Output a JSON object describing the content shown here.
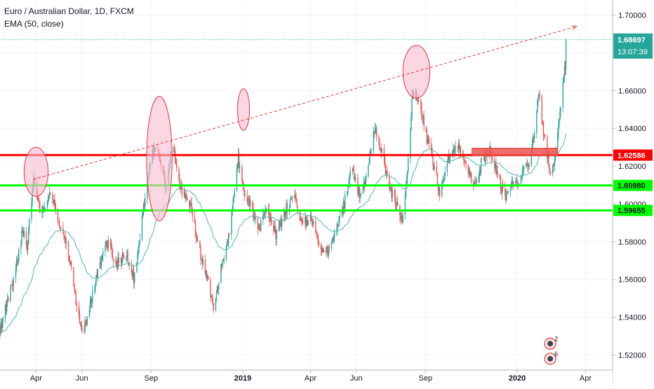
{
  "header": {
    "symbol": "Euro / Australian Dollar, 1D, FXCM",
    "indicator": "EMA (50, close)"
  },
  "price_badge": {
    "price": "1.68697",
    "countdown": "13:07:39"
  },
  "colors": {
    "up": "#26a69a",
    "down": "#ef5350",
    "ema": "#4db6ac",
    "resistance": "#ff0000",
    "support": "#00ff00",
    "annotation_fill": "#f8bbd0",
    "annotation_stroke": "#e53935",
    "trend": "#e53935",
    "grid": "#f0f3fa",
    "axis_text": "#131722",
    "badge_bg": "#26a69a"
  },
  "chart_data": {
    "type": "candlestick",
    "title": "Euro / Australian Dollar, 1D, FXCM",
    "indicator": "EMA (50, close)",
    "x_range": [
      "2018-02-12",
      "2020-05-07"
    ],
    "ylim": [
      1.512,
      1.708
    ],
    "y_ticks": [
      "1.70000",
      "1.68000",
      "1.66000",
      "1.64000",
      "1.62000",
      "1.60000",
      "1.58000",
      "1.56000",
      "1.54000",
      "1.52000"
    ],
    "x_ticks": [
      {
        "label": "Apr",
        "date": "2018-04-01",
        "bold": false
      },
      {
        "label": "Jun",
        "date": "2018-06-01",
        "bold": false
      },
      {
        "label": "Sep",
        "date": "2018-09-01",
        "bold": false
      },
      {
        "label": "2019",
        "date": "2019-01-01",
        "bold": true
      },
      {
        "label": "Apr",
        "date": "2019-04-01",
        "bold": false
      },
      {
        "label": "Jun",
        "date": "2019-06-01",
        "bold": false
      },
      {
        "label": "Sep",
        "date": "2019-09-01",
        "bold": false
      },
      {
        "label": "2020",
        "date": "2020-01-01",
        "bold": true
      },
      {
        "label": "Apr",
        "date": "2020-04-01",
        "bold": false
      }
    ],
    "price_path": [
      [
        "2018-02-12",
        1.534
      ],
      [
        "2018-02-22",
        1.548
      ],
      [
        "2018-03-05",
        1.566
      ],
      [
        "2018-03-14",
        1.585
      ],
      [
        "2018-03-20",
        1.578
      ],
      [
        "2018-03-29",
        1.612
      ],
      [
        "2018-04-06",
        1.597
      ],
      [
        "2018-04-14",
        1.595
      ],
      [
        "2018-04-21",
        1.609
      ],
      [
        "2018-04-28",
        1.595
      ],
      [
        "2018-05-08",
        1.585
      ],
      [
        "2018-05-18",
        1.566
      ],
      [
        "2018-05-26",
        1.544
      ],
      [
        "2018-06-03",
        1.532
      ],
      [
        "2018-06-12",
        1.546
      ],
      [
        "2018-06-23",
        1.566
      ],
      [
        "2018-07-04",
        1.58
      ],
      [
        "2018-07-17",
        1.568
      ],
      [
        "2018-07-30",
        1.574
      ],
      [
        "2018-08-09",
        1.56
      ],
      [
        "2018-08-20",
        1.592
      ],
      [
        "2018-08-29",
        1.618
      ],
      [
        "2018-09-05",
        1.631
      ],
      [
        "2018-09-13",
        1.625
      ],
      [
        "2018-09-20",
        1.61
      ],
      [
        "2018-09-30",
        1.632
      ],
      [
        "2018-10-10",
        1.608
      ],
      [
        "2018-10-24",
        1.598
      ],
      [
        "2018-11-04",
        1.576
      ],
      [
        "2018-11-14",
        1.562
      ],
      [
        "2018-11-24",
        1.542
      ],
      [
        "2018-12-02",
        1.566
      ],
      [
        "2018-12-12",
        1.58
      ],
      [
        "2018-12-20",
        1.606
      ],
      [
        "2018-12-26",
        1.624
      ],
      [
        "2019-01-03",
        1.604
      ],
      [
        "2019-01-12",
        1.598
      ],
      [
        "2019-01-22",
        1.586
      ],
      [
        "2019-02-02",
        1.598
      ],
      [
        "2019-02-14",
        1.584
      ],
      [
        "2019-02-26",
        1.596
      ],
      [
        "2019-03-10",
        1.604
      ],
      [
        "2019-03-20",
        1.59
      ],
      [
        "2019-04-02",
        1.592
      ],
      [
        "2019-04-14",
        1.578
      ],
      [
        "2019-04-24",
        1.574
      ],
      [
        "2019-05-05",
        1.586
      ],
      [
        "2019-05-16",
        1.6
      ],
      [
        "2019-05-26",
        1.618
      ],
      [
        "2019-06-05",
        1.606
      ],
      [
        "2019-06-14",
        1.614
      ],
      [
        "2019-06-25",
        1.64
      ],
      [
        "2019-07-05",
        1.628
      ],
      [
        "2019-07-15",
        1.608
      ],
      [
        "2019-07-25",
        1.6
      ],
      [
        "2019-08-02",
        1.592
      ],
      [
        "2019-08-10",
        1.628
      ],
      [
        "2019-08-15",
        1.66
      ],
      [
        "2019-08-25",
        1.652
      ],
      [
        "2019-09-04",
        1.632
      ],
      [
        "2019-09-10",
        1.624
      ],
      [
        "2019-09-20",
        1.606
      ],
      [
        "2019-10-02",
        1.625
      ],
      [
        "2019-10-15",
        1.632
      ],
      [
        "2019-10-25",
        1.62
      ],
      [
        "2019-11-05",
        1.608
      ],
      [
        "2019-11-15",
        1.622
      ],
      [
        "2019-11-26",
        1.63
      ],
      [
        "2019-12-06",
        1.615
      ],
      [
        "2019-12-16",
        1.602
      ],
      [
        "2019-12-26",
        1.611
      ],
      [
        "2020-01-06",
        1.614
      ],
      [
        "2020-01-18",
        1.622
      ],
      [
        "2020-01-30",
        1.658
      ],
      [
        "2020-02-08",
        1.63
      ],
      [
        "2020-02-16",
        1.614
      ],
      [
        "2020-02-24",
        1.636
      ],
      [
        "2020-03-02",
        1.662
      ],
      [
        "2020-03-08",
        1.686
      ]
    ],
    "last_price": 1.68697,
    "horizontal_lines": [
      {
        "price": 1.62586,
        "label": "1.62586",
        "role": "resistance"
      },
      {
        "price": 1.6098,
        "label": "1.60980",
        "role": "support"
      },
      {
        "price": 1.59655,
        "label": "1.59655",
        "role": "support"
      }
    ],
    "trend_line": {
      "from": [
        "2018-03-28",
        1.613
      ],
      "to": [
        "2020-03-20",
        1.694
      ]
    },
    "highlight_ellipses": [
      {
        "date": "2018-04-01",
        "price": 1.617,
        "d_days": 16,
        "d_price": 0.013
      },
      {
        "date": "2018-09-12",
        "price": 1.624,
        "d_days": 17,
        "d_price": 0.033
      },
      {
        "date": "2019-01-02",
        "price": 1.65,
        "d_days": 8,
        "d_price": 0.011
      },
      {
        "date": "2019-08-20",
        "price": 1.67,
        "d_days": 18,
        "d_price": 0.014
      }
    ],
    "highlight_box": {
      "from": [
        "2019-11-02",
        1.6295
      ],
      "to": [
        "2020-02-24",
        1.6255
      ]
    },
    "event_markers": [
      {
        "date": "2020-02-14",
        "price": 1.526,
        "count": "2"
      },
      {
        "date": "2020-02-14",
        "price": 1.518,
        "count": "6"
      }
    ]
  }
}
